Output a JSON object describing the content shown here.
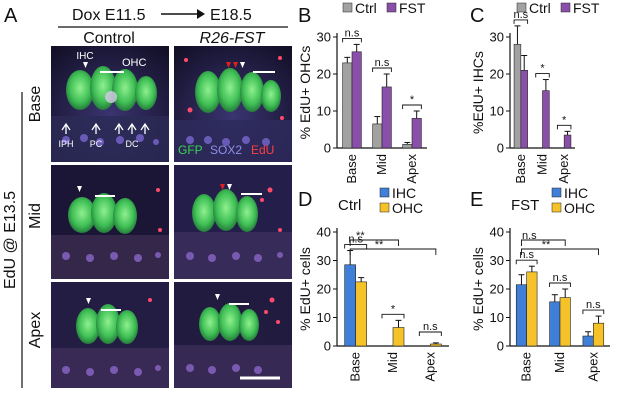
{
  "figure": {
    "panel_A": {
      "letter": "A",
      "treatment": {
        "dox": "Dox E11.5",
        "stage": "E18.5"
      },
      "columns": {
        "control": "Control",
        "fst": "R26-FST"
      },
      "row_group_label": "EdU @ E13.5",
      "rows": [
        "Base",
        "Mid",
        "Apex"
      ],
      "annotations": {
        "ihc": "IHC",
        "ohc": "OHC",
        "iph": "IPH",
        "pc": "PC",
        "dc": "DC"
      },
      "stain_legend": [
        {
          "label": "GFP",
          "color": "#39d353"
        },
        {
          "label": "SOX2",
          "color": "#8f8fe8"
        },
        {
          "label": "EdU",
          "color": "#ff3e3e"
        }
      ]
    },
    "panel_B": {
      "letter": "B"
    },
    "panel_C": {
      "letter": "C"
    },
    "panel_D": {
      "letter": "D"
    },
    "panel_E": {
      "letter": "E"
    }
  },
  "colors": {
    "ctrl": "#a2a2a2",
    "fst": "#8a4fa8",
    "ihc": "#3f7fd8",
    "ohc": "#f6c22a"
  },
  "chart_data": [
    {
      "panel": "B",
      "type": "bar",
      "categories": [
        "Base",
        "Mid",
        "Apex"
      ],
      "series": [
        {
          "name": "Ctrl",
          "values": [
            23,
            6.5,
            1
          ],
          "errors": [
            1.5,
            2,
            0.5
          ],
          "color": "#a2a2a2"
        },
        {
          "name": "FST",
          "values": [
            26,
            16.5,
            8
          ],
          "errors": [
            2,
            3.5,
            2
          ],
          "color": "#8a4fa8"
        }
      ],
      "ylabel": "% EdU+ OHCs",
      "ylim": [
        0,
        30
      ],
      "yticks": [
        0,
        10,
        20,
        30
      ],
      "significance": [
        {
          "label": "n.s",
          "category": 0
        },
        {
          "label": "n.s",
          "category": 1
        },
        {
          "label": "*",
          "category": 2
        }
      ]
    },
    {
      "panel": "C",
      "type": "bar",
      "categories": [
        "Base",
        "Mid",
        "Apex"
      ],
      "series": [
        {
          "name": "Ctrl",
          "values": [
            28,
            0,
            0
          ],
          "errors": [
            5,
            0,
            0
          ],
          "color": "#a2a2a2"
        },
        {
          "name": "FST",
          "values": [
            21,
            15.5,
            3.5
          ],
          "errors": [
            4,
            3,
            1
          ],
          "color": "#8a4fa8"
        }
      ],
      "ylabel": "%EdU+ IHCs",
      "ylim": [
        0,
        30
      ],
      "yticks": [
        0,
        10,
        20,
        30
      ],
      "significance": [
        {
          "label": "n.s",
          "category": 0
        },
        {
          "label": "*",
          "category": 1
        },
        {
          "label": "*",
          "category": 2
        }
      ]
    },
    {
      "panel": "D",
      "title": "Ctrl",
      "type": "bar",
      "categories": [
        "Base",
        "Mid",
        "Apex"
      ],
      "series": [
        {
          "name": "IHC",
          "values": [
            28.5,
            0,
            0
          ],
          "errors": [
            5,
            0,
            0
          ],
          "color": "#3f7fd8"
        },
        {
          "name": "OHC",
          "values": [
            22.5,
            6.5,
            0.7
          ],
          "errors": [
            1.5,
            2.5,
            0.4
          ],
          "color": "#f6c22a"
        }
      ],
      "ylabel": "% EdU+ cells",
      "ylim": [
        0,
        40
      ],
      "yticks": [
        0,
        10,
        20,
        30,
        40
      ],
      "significance": [
        {
          "label": "n.s",
          "category": 0
        },
        {
          "label": "*",
          "category": 1
        },
        {
          "label": "n.s",
          "category": 2
        },
        {
          "label": "**",
          "from": 0,
          "to": 1
        },
        {
          "label": "**",
          "from": 0,
          "to": 2
        }
      ]
    },
    {
      "panel": "E",
      "title": "FST",
      "type": "bar",
      "categories": [
        "Base",
        "Mid",
        "Apex"
      ],
      "series": [
        {
          "name": "IHC",
          "values": [
            21.5,
            15.5,
            3.5
          ],
          "errors": [
            3.5,
            2.5,
            1.5
          ],
          "color": "#3f7fd8"
        },
        {
          "name": "OHC",
          "values": [
            26,
            17,
            8
          ],
          "errors": [
            2,
            3,
            2.5
          ],
          "color": "#f6c22a"
        }
      ],
      "ylabel": "% EdU+ cells",
      "ylim": [
        0,
        40
      ],
      "yticks": [
        0,
        10,
        20,
        30,
        40
      ],
      "significance": [
        {
          "label": "n.s",
          "category": 0
        },
        {
          "label": "n.s",
          "category": 1
        },
        {
          "label": "n.s",
          "category": 2
        },
        {
          "label": "n.s",
          "from": 0,
          "to": 1
        },
        {
          "label": "**",
          "from": 0,
          "to": 2
        }
      ]
    }
  ]
}
